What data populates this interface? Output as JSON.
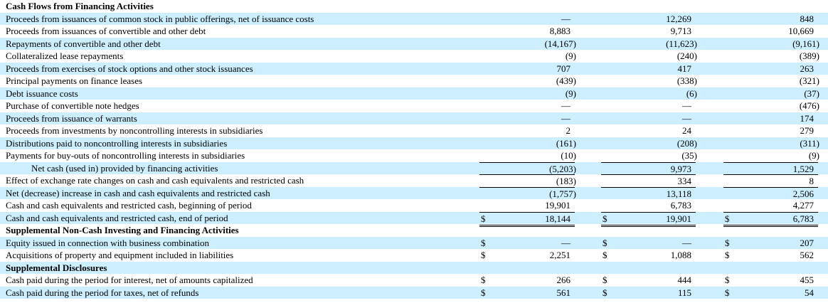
{
  "rows": [
    {
      "label": "Cash Flows from Financing Activities",
      "style": "head"
    },
    {
      "label": "Proceeds from issuances of common stock in public offerings, net of issuance costs",
      "values": [
        "—",
        "12,269",
        "848"
      ]
    },
    {
      "label": "Proceeds from issuances of convertible and other debt",
      "values": [
        "8,883",
        "9,713",
        "10,669"
      ]
    },
    {
      "label": "Repayments of convertible and other debt",
      "values": [
        "(14,167)",
        "(11,623)",
        "(9,161)"
      ]
    },
    {
      "label": "Collateralized lease repayments",
      "values": [
        "(9)",
        "(240)",
        "(389)"
      ]
    },
    {
      "label": "Proceeds from exercises of stock options and other stock issuances",
      "values": [
        "707",
        "417",
        "263"
      ]
    },
    {
      "label": "Principal payments on finance leases",
      "values": [
        "(439)",
        "(338)",
        "(321)"
      ]
    },
    {
      "label": "Debt issuance costs",
      "values": [
        "(9)",
        "(6)",
        "(37)"
      ]
    },
    {
      "label": "Purchase of convertible note hedges",
      "values": [
        "—",
        "—",
        "(476)"
      ]
    },
    {
      "label": "Proceeds from issuance of warrants",
      "values": [
        "—",
        "—",
        "174"
      ]
    },
    {
      "label": "Proceeds from investments by noncontrolling interests in subsidiaries",
      "values": [
        "2",
        "24",
        "279"
      ]
    },
    {
      "label": "Distributions paid to noncontrolling interests in subsidiaries",
      "values": [
        "(161)",
        "(208)",
        "(311)"
      ]
    },
    {
      "label": "Payments for buy-outs of noncontrolling interests in subsidiaries",
      "values": [
        "(10)",
        "(35)",
        "(9)"
      ]
    },
    {
      "label": "Net cash (used in) provided by financing activities",
      "style": "indent",
      "topline": true,
      "values": [
        "(5,203)",
        "9,973",
        "1,529"
      ]
    },
    {
      "label": "Effect of exchange rate changes on cash and cash equivalents and restricted cash",
      "topline": true,
      "values": [
        "(183)",
        "334",
        "8"
      ]
    },
    {
      "label": "Net (decrease) increase in cash and cash equivalents and restricted cash",
      "topline": true,
      "values": [
        "(1,757)",
        "13,118",
        "2,506"
      ]
    },
    {
      "label": "Cash and cash equivalents and restricted cash, beginning of period",
      "values": [
        "19,901",
        "6,783",
        "4,277"
      ]
    },
    {
      "label": "Cash and cash equivalents and restricted cash, end of period",
      "topline": true,
      "double": true,
      "dollar": "$",
      "values": [
        "18,144",
        "19,901",
        "6,783"
      ]
    },
    {
      "label": "Supplemental Non-Cash Investing and Financing Activities",
      "style": "head"
    },
    {
      "label": "Equity issued in connection with business combination",
      "dollar": "$",
      "values": [
        "—",
        "—",
        "207"
      ]
    },
    {
      "label": "Acquisitions of property and equipment included in liabilities",
      "dollar": "$",
      "values": [
        "2,251",
        "1,088",
        "562"
      ]
    },
    {
      "label": "Supplemental Disclosures",
      "style": "head"
    },
    {
      "label": "Cash paid during the period for interest, net of amounts capitalized",
      "dollar": "$",
      "values": [
        "266",
        "444",
        "455"
      ]
    },
    {
      "label": "Cash paid during the period for taxes, net of refunds",
      "dollar": "$",
      "values": [
        "561",
        "115",
        "54"
      ]
    }
  ],
  "colors": {
    "stripe": "#cceeff"
  }
}
